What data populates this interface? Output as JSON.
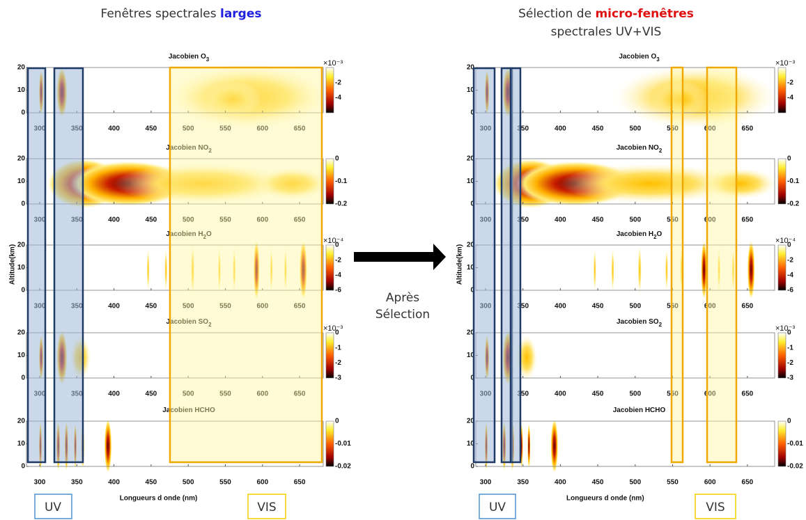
{
  "left": {
    "title": "Fenêtres spectrales",
    "title_highlight": "larges"
  },
  "right": {
    "title": "Sélection de",
    "title_highlight": "micro-fenêtres",
    "title_line2": "spectrales UV+VIS"
  },
  "arrow_label": [
    "Après",
    "Sélection"
  ],
  "y_axis_label": "Altitude(km)",
  "x_axis_label": "Longueurs d onde (nm)",
  "band_labels": [
    "UV",
    "VIS"
  ],
  "xticks": [
    "300",
    "350",
    "400",
    "450",
    "500",
    "550",
    "600",
    "650"
  ],
  "yticks": [
    "0",
    "10",
    "20"
  ],
  "plots": [
    {
      "title": "Jacobien O",
      "sub": "3",
      "cbar_ticks": [
        "-2",
        "-4"
      ],
      "cbar_exponent": "×10⁻³"
    },
    {
      "title": "Jacobien NO",
      "sub": "2",
      "cbar_ticks": [
        "0",
        "-0.1",
        "-0.2"
      ]
    },
    {
      "title": "Jacobien H",
      "sub": "2",
      "title_end": "O",
      "cbar_ticks": [
        "0",
        "-2",
        "-4",
        "-6"
      ],
      "cbar_exponent": "×10⁻⁴"
    },
    {
      "title": "Jacobien SO",
      "sub": "2",
      "cbar_ticks": [
        "0",
        "-1",
        "-2",
        "-3"
      ],
      "cbar_exponent": "×10⁻³"
    },
    {
      "title": "Jacobien HCHO",
      "cbar_ticks": [
        "0",
        "-0.01",
        "-0.02"
      ]
    }
  ]
}
